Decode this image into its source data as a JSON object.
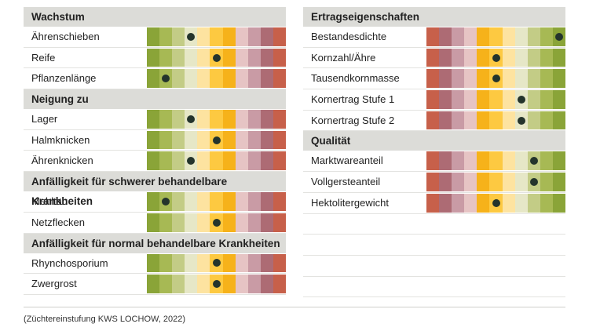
{
  "colors": {
    "green_to_red": [
      "#8aa438",
      "#a7b954",
      "#c3cc86",
      "#e6e7c7",
      "#fde3a0",
      "#fdc941",
      "#f6b21a",
      "#e6c4c4",
      "#c99ba5",
      "#ad6b74",
      "#c7604a"
    ],
    "red_to_green": [
      "#c7604a",
      "#ad6b74",
      "#c99ba5",
      "#e6c4c4",
      "#f6b21a",
      "#fdc941",
      "#fde3a0",
      "#e6e7c7",
      "#c3cc86",
      "#a7b954",
      "#8aa438"
    ]
  },
  "left": {
    "sections": [
      {
        "title": "Wachstum",
        "rows": [
          {
            "label": "Ährenschieben",
            "score": 4
          },
          {
            "label": "Reife",
            "score": 6
          },
          {
            "label": "Pflanzenlänge",
            "score": 2
          }
        ]
      },
      {
        "title": "Neigung zu",
        "rows": [
          {
            "label": "Lager",
            "score": 4
          },
          {
            "label": "Halmknicken",
            "score": 6
          },
          {
            "label": "Ährenknicken",
            "score": 4
          }
        ]
      },
      {
        "title": "Anfälligkeit für schwerer behandelbare Krankheiten",
        "rows": [
          {
            "label": "Mehltau",
            "score": 2
          },
          {
            "label": "Netzflecken",
            "score": 6
          }
        ]
      },
      {
        "title": "Anfälligkeit für normal behandelbare Krankheiten",
        "rows": [
          {
            "label": "Rhynchosporium",
            "score": 6
          },
          {
            "label": "Zwergrost",
            "score": 6
          }
        ]
      }
    ]
  },
  "right": {
    "sections": [
      {
        "title": "Ertragseigenschaften",
        "rows": [
          {
            "label": "Bestandesdichte",
            "score": 11
          },
          {
            "label": "Kornzahl/Ähre",
            "score": 6
          },
          {
            "label": "Tausendkornmasse",
            "score": 6
          },
          {
            "label": "Kornertrag Stufe 1",
            "score": 8
          },
          {
            "label": "Kornertrag Stufe 2",
            "score": 8
          }
        ]
      },
      {
        "title": "Qualität",
        "rows": [
          {
            "label": "Marktwareanteil",
            "score": 9
          },
          {
            "label": "Vollgersteanteil",
            "score": 9
          },
          {
            "label": "Hektolitergewicht",
            "score": 6
          }
        ]
      }
    ]
  },
  "footnote": "(Züchtereinstufung KWS LOCHOW, 2022)"
}
